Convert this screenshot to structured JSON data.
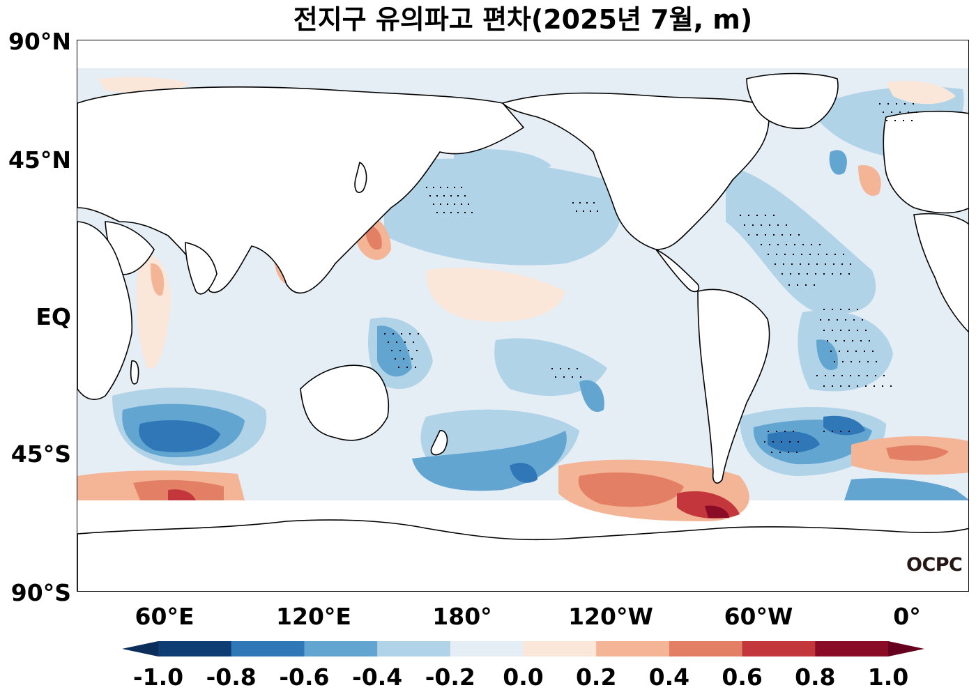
{
  "title": "전지구 유의파고 편차(2025년 7월, m)",
  "lat_labels": [
    "90°N",
    "45°N",
    "EQ",
    "45°S",
    "90°S"
  ],
  "lon_labels": [
    "60°E",
    "120°E",
    "180°",
    "120°W",
    "60°W",
    "0°"
  ],
  "colorbar": {
    "tick_labels": [
      "-1.0",
      "-0.8",
      "-0.6",
      "-0.4",
      "-0.2",
      "0.0",
      "0.2",
      "0.4",
      "0.6",
      "0.8",
      "1.0"
    ],
    "colors": [
      "#0d3d73",
      "#2f77b6",
      "#62a5d1",
      "#b0d3e8",
      "#e5edf5",
      "#fbe6da",
      "#f4b496",
      "#e27f64",
      "#c2363c",
      "#8a0b25"
    ],
    "under_color": "#0b2d5a",
    "over_color": "#67001f"
  },
  "logo": "OCPC",
  "colors": {
    "land": "#ffffff",
    "coast": "#000000",
    "stipple": "#000000"
  }
}
